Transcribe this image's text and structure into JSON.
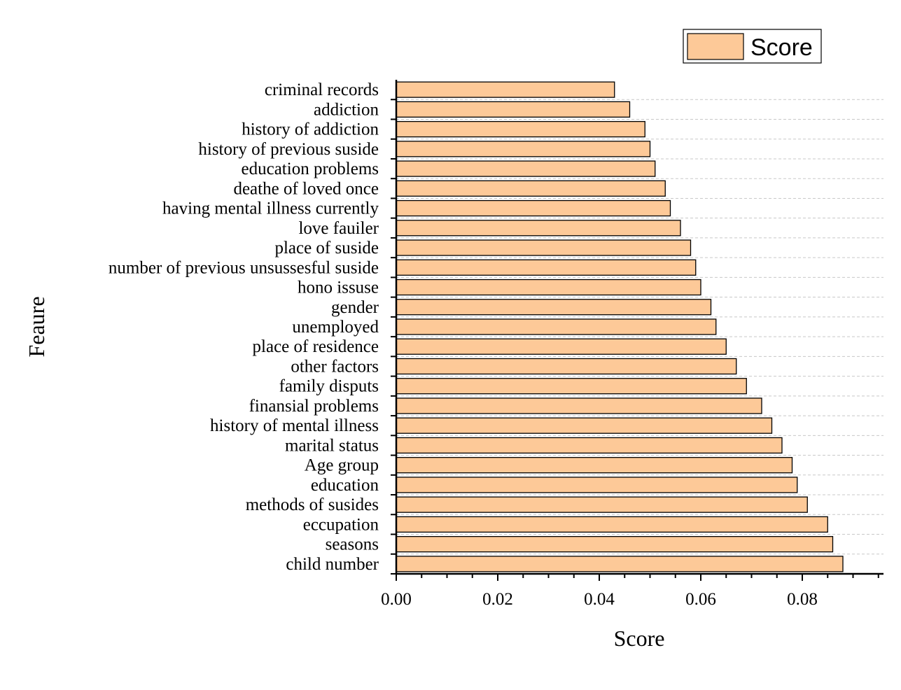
{
  "chart_data": {
    "type": "bar",
    "orientation": "horizontal",
    "xlabel": "Score",
    "ylabel": "Feaure",
    "xlim": [
      0,
      0.096
    ],
    "xticks": [
      "0.00",
      "0.02",
      "0.04",
      "0.06",
      "0.08"
    ],
    "grid": true,
    "legend_position": "top-right",
    "categories": [
      "criminal records",
      "addiction",
      "history of addiction",
      "history of previous suside",
      "education problems",
      "deathe of loved once",
      "having mental illness currently",
      "love fauiler",
      "place of suside",
      "number of previous unsussesful suside",
      "hono issuse",
      "gender",
      "unemployed",
      "place of residence",
      "other factors",
      "family disputs",
      "finansial problems",
      "history of mental illness",
      "marital status",
      "Age group",
      "education",
      "methods of susides",
      "eccupation",
      "seasons",
      "child number"
    ],
    "series": [
      {
        "name": "Score",
        "color": "#FDC998",
        "values": [
          0.043,
          0.046,
          0.049,
          0.05,
          0.051,
          0.053,
          0.054,
          0.056,
          0.058,
          0.059,
          0.06,
          0.062,
          0.063,
          0.065,
          0.067,
          0.069,
          0.072,
          0.074,
          0.076,
          0.078,
          0.079,
          0.081,
          0.085,
          0.086,
          0.088
        ]
      }
    ]
  }
}
